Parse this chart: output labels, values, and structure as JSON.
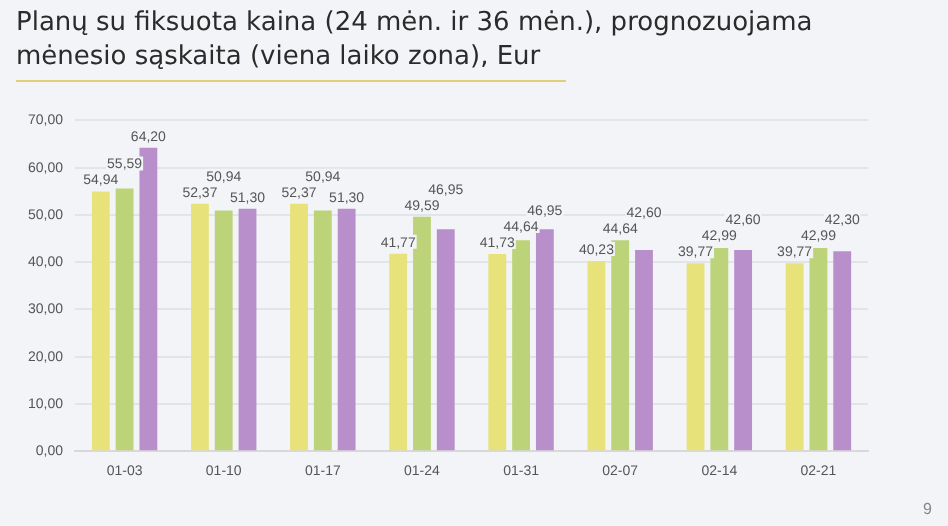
{
  "chart_data": {
    "type": "bar",
    "title": "Planų su fiksuota kaina (24 mėn. ir 36 mėn.), prognozuojama mėnesio sąskaita (viena laiko zona), Eur",
    "categories": [
      "01-03",
      "01-10",
      "01-17",
      "01-24",
      "01-31",
      "02-07",
      "02-14",
      "02-21"
    ],
    "series": [
      {
        "color": "#e8e27a",
        "values": [
          54.94,
          52.37,
          52.37,
          41.77,
          41.73,
          40.23,
          39.77,
          39.77
        ],
        "value_labels": [
          "54,94",
          "52,37",
          "52,37",
          "41,77",
          "41,73",
          "40,23",
          "39,77",
          "39,77"
        ]
      },
      {
        "color": "#bcd37a",
        "values": [
          55.59,
          50.94,
          50.94,
          49.59,
          44.64,
          44.64,
          42.99,
          42.99
        ],
        "value_labels": [
          "55,59",
          "50,94",
          "50,94",
          "49,59",
          "44,64",
          "44,64",
          "42,99",
          "42,99"
        ]
      },
      {
        "color": "#b98fcb",
        "values": [
          64.2,
          51.3,
          51.3,
          46.95,
          46.95,
          42.6,
          42.6,
          42.3
        ],
        "value_labels": [
          "64,20",
          "51,30",
          "51,30",
          "46,95",
          "46,95",
          "42,60",
          "42,60",
          "42,30"
        ]
      }
    ],
    "ylim": [
      0,
      70
    ],
    "yticks": [
      {
        "value": 0,
        "label": "0,00"
      },
      {
        "value": 10,
        "label": "10,00"
      },
      {
        "value": 20,
        "label": "20,00"
      },
      {
        "value": 30,
        "label": "30,00"
      },
      {
        "value": 40,
        "label": "40,00"
      },
      {
        "value": 50,
        "label": "50,00"
      },
      {
        "value": 60,
        "label": "60,00"
      },
      {
        "value": 70,
        "label": "70,00"
      }
    ],
    "grid": "y",
    "annotations": [
      "9"
    ]
  }
}
